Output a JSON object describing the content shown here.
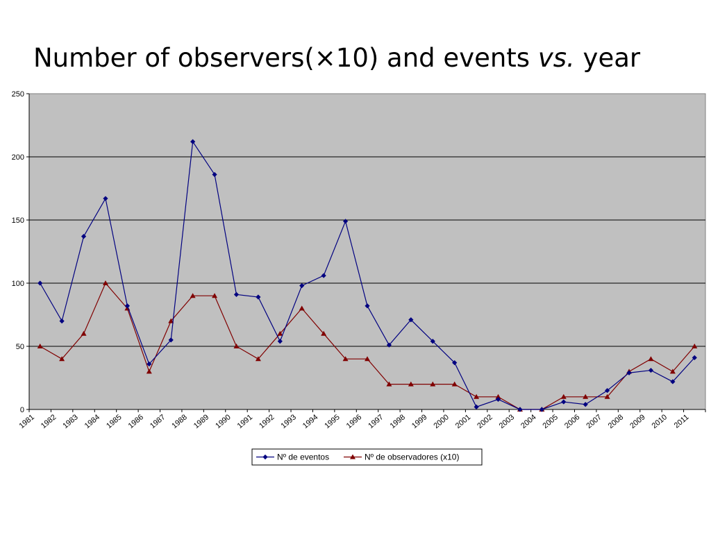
{
  "slide": {
    "title_main": "Number of observers(×10) and events ",
    "title_em": "vs.",
    "title_end": " year"
  },
  "chart_data": {
    "type": "line",
    "title": "Number of observers(×10) and events vs. year",
    "xlabel": "",
    "ylabel": "",
    "categories": [
      "1981",
      "1982",
      "1983",
      "1984",
      "1985",
      "1986",
      "1987",
      "1988",
      "1989",
      "1990",
      "1991",
      "1992",
      "1993",
      "1994",
      "1995",
      "1996",
      "1997",
      "1998",
      "1999",
      "2000",
      "2001",
      "2002",
      "2003",
      "2004",
      "2005",
      "2006",
      "2007",
      "2008",
      "2009",
      "2010",
      "2011"
    ],
    "ylim": [
      0,
      250
    ],
    "yticks": [
      0,
      50,
      100,
      150,
      200,
      250
    ],
    "grid": "horizontal",
    "plot_background": "#c0c0c0",
    "legend_position": "bottom",
    "series": [
      {
        "name": "Nº de eventos",
        "marker": "diamond",
        "color": "#000080",
        "values": [
          100,
          70,
          137,
          167,
          82,
          36,
          55,
          212,
          186,
          91,
          89,
          54,
          98,
          106,
          149,
          82,
          51,
          71,
          54,
          37,
          2,
          8,
          0,
          0,
          6,
          4,
          15,
          29,
          31,
          22,
          41
        ]
      },
      {
        "name": "Nº de observadores (x10)",
        "marker": "triangle",
        "color": "#800000",
        "values": [
          50,
          40,
          60,
          100,
          80,
          30,
          70,
          90,
          90,
          50,
          40,
          60,
          80,
          60,
          40,
          40,
          20,
          20,
          20,
          20,
          10,
          10,
          0,
          0,
          10,
          10,
          10,
          30,
          40,
          30,
          50
        ]
      }
    ]
  }
}
